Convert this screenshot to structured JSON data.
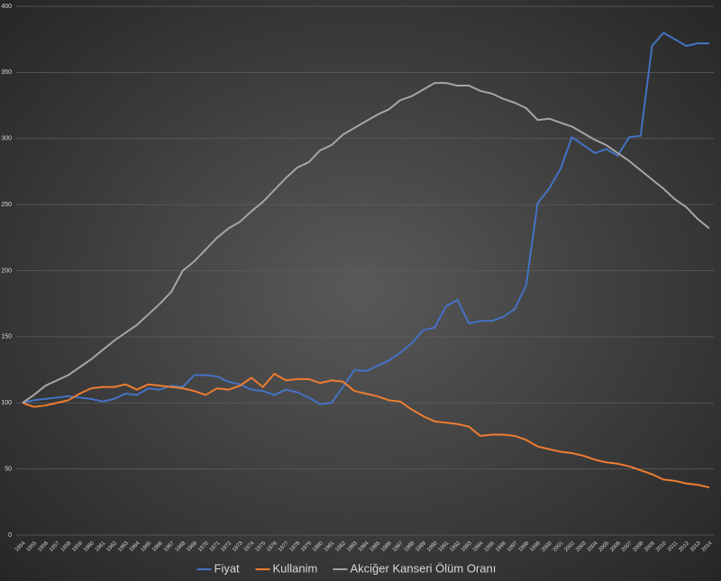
{
  "chart_data": {
    "type": "line",
    "categories": [
      "1954",
      "1955",
      "1956",
      "1957",
      "1958",
      "1959",
      "1960",
      "1961",
      "1962",
      "1963",
      "1964",
      "1965",
      "1966",
      "1967",
      "1968",
      "1969",
      "1970",
      "1971",
      "1972",
      "1973",
      "1974",
      "1975",
      "1976",
      "1977",
      "1978",
      "1979",
      "1980",
      "1981",
      "1982",
      "1983",
      "1984",
      "1985",
      "1986",
      "1987",
      "1988",
      "1989",
      "1990",
      "1991",
      "1992",
      "1993",
      "1994",
      "1995",
      "1996",
      "1997",
      "1998",
      "1999",
      "2000",
      "2001",
      "2002",
      "2003",
      "2004",
      "2005",
      "2006",
      "2007",
      "2008",
      "2009",
      "2010",
      "2011",
      "2012",
      "2013",
      "2014"
    ],
    "series": [
      {
        "name": "Fiyat",
        "color": "#4472c4",
        "values": [
          100,
          102,
          103,
          104,
          105,
          104,
          103,
          101,
          103,
          107,
          106,
          111,
          110,
          113,
          112,
          121,
          121,
          120,
          116,
          114,
          110,
          109,
          106,
          110,
          108,
          104,
          99,
          100,
          112,
          125,
          124,
          128,
          132,
          138,
          145,
          155,
          157,
          173,
          178,
          160,
          162,
          162,
          165,
          171,
          189,
          251,
          262,
          277,
          301,
          295,
          289,
          292,
          287,
          301,
          302,
          370,
          380,
          375,
          370,
          372,
          372
        ]
      },
      {
        "name": "Kullanim",
        "color": "#ed7d31",
        "values": [
          100,
          97,
          98,
          100,
          102,
          107,
          111,
          112,
          112,
          114,
          110,
          114,
          113,
          112,
          111,
          109,
          106,
          111,
          110,
          113,
          119,
          112,
          122,
          117,
          118,
          118,
          115,
          117,
          116,
          109,
          107,
          105,
          102,
          101,
          95,
          90,
          86,
          85,
          84,
          82,
          75,
          76,
          76,
          75,
          72,
          67,
          65,
          63,
          62,
          60,
          57,
          55,
          54,
          52,
          49,
          46,
          42,
          41,
          39,
          38,
          36
        ]
      },
      {
        "name": "Akciğer Kanseri Ölüm Oranı",
        "color": "#a5a5a5",
        "values": [
          100,
          106,
          113,
          117,
          121,
          127,
          133,
          140,
          147,
          153,
          159,
          167,
          175,
          184,
          200,
          207,
          216,
          225,
          232,
          237,
          245,
          252,
          261,
          270,
          278,
          282,
          291,
          295,
          303,
          308,
          313,
          318,
          322,
          329,
          332,
          337,
          342,
          342,
          340,
          340,
          336,
          334,
          330,
          327,
          323,
          314,
          315,
          312,
          309,
          304,
          299,
          295,
          289,
          283,
          276,
          269,
          262,
          254,
          248,
          239,
          232
        ]
      }
    ],
    "ylim": [
      0,
      400
    ],
    "yticks": [
      0,
      50,
      100,
      150,
      200,
      250,
      300,
      350,
      400
    ],
    "grid": true,
    "legend": "bottom"
  }
}
